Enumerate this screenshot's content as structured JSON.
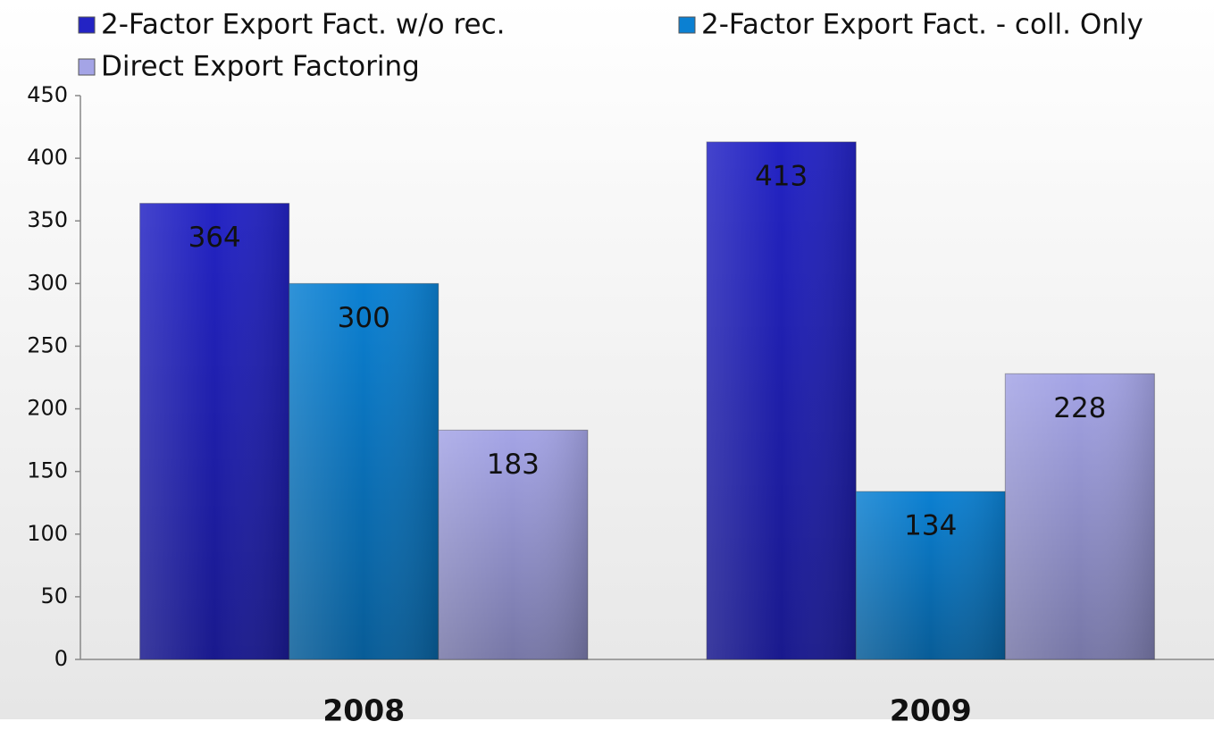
{
  "chart_data": {
    "type": "bar",
    "categories": [
      "2008",
      "2009"
    ],
    "series": [
      {
        "name": "2-Factor Export Fact. w/o rec.",
        "color": "#2323c4",
        "values": [
          364,
          413
        ]
      },
      {
        "name": "2-Factor Export Fact. - coll. Only",
        "color": "#0b80d2",
        "values": [
          300,
          134
        ]
      },
      {
        "name": "Direct Export Factoring",
        "color": "#a4a4e6",
        "values": [
          183,
          228
        ]
      }
    ],
    "ylim": [
      0,
      450
    ],
    "yticks": [
      0,
      50,
      100,
      150,
      200,
      250,
      300,
      350,
      400,
      450
    ],
    "legend": "top"
  }
}
